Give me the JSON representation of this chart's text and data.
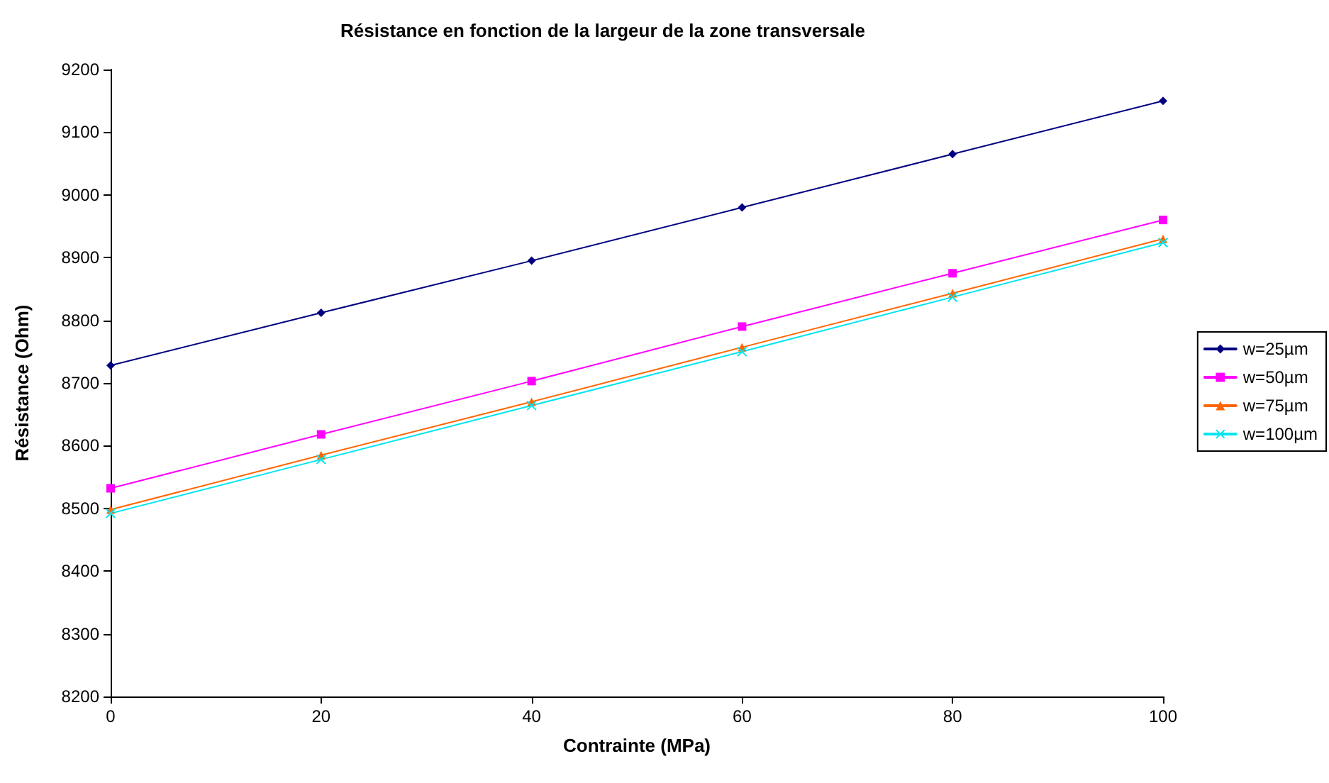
{
  "chart_data": {
    "type": "line",
    "title": "Résistance en fonction de la largeur de la zone transversale",
    "xlabel": "Contrainte (MPa)",
    "ylabel": "Résistance (Ohm)",
    "x": [
      0,
      20,
      40,
      60,
      80,
      100
    ],
    "xlim": [
      0,
      100
    ],
    "xticks": [
      0,
      20,
      40,
      60,
      80,
      100
    ],
    "ylim": [
      8200,
      9200
    ],
    "yticks": [
      8200,
      8300,
      8400,
      8500,
      8600,
      8700,
      8800,
      8900,
      9000,
      9100,
      9200
    ],
    "grid": false,
    "legend": "right",
    "line_style": "solid",
    "series": [
      {
        "name": "w=25µm",
        "color": "#000080",
        "marker": "diamond",
        "values": [
          8728,
          8812,
          8895,
          8980,
          9065,
          9150
        ]
      },
      {
        "name": "w=50µm",
        "color": "#ff00ff",
        "marker": "square",
        "values": [
          8532,
          8618,
          8703,
          8790,
          8875,
          8960
        ]
      },
      {
        "name": "w=75µm",
        "color": "#ff6600",
        "marker": "triangle",
        "values": [
          8498,
          8585,
          8670,
          8757,
          8843,
          8930
        ]
      },
      {
        "name": "w=100µm",
        "color": "#00e5ee",
        "marker": "cross",
        "values": [
          8492,
          8578,
          8664,
          8750,
          8837,
          8924
        ]
      }
    ]
  }
}
